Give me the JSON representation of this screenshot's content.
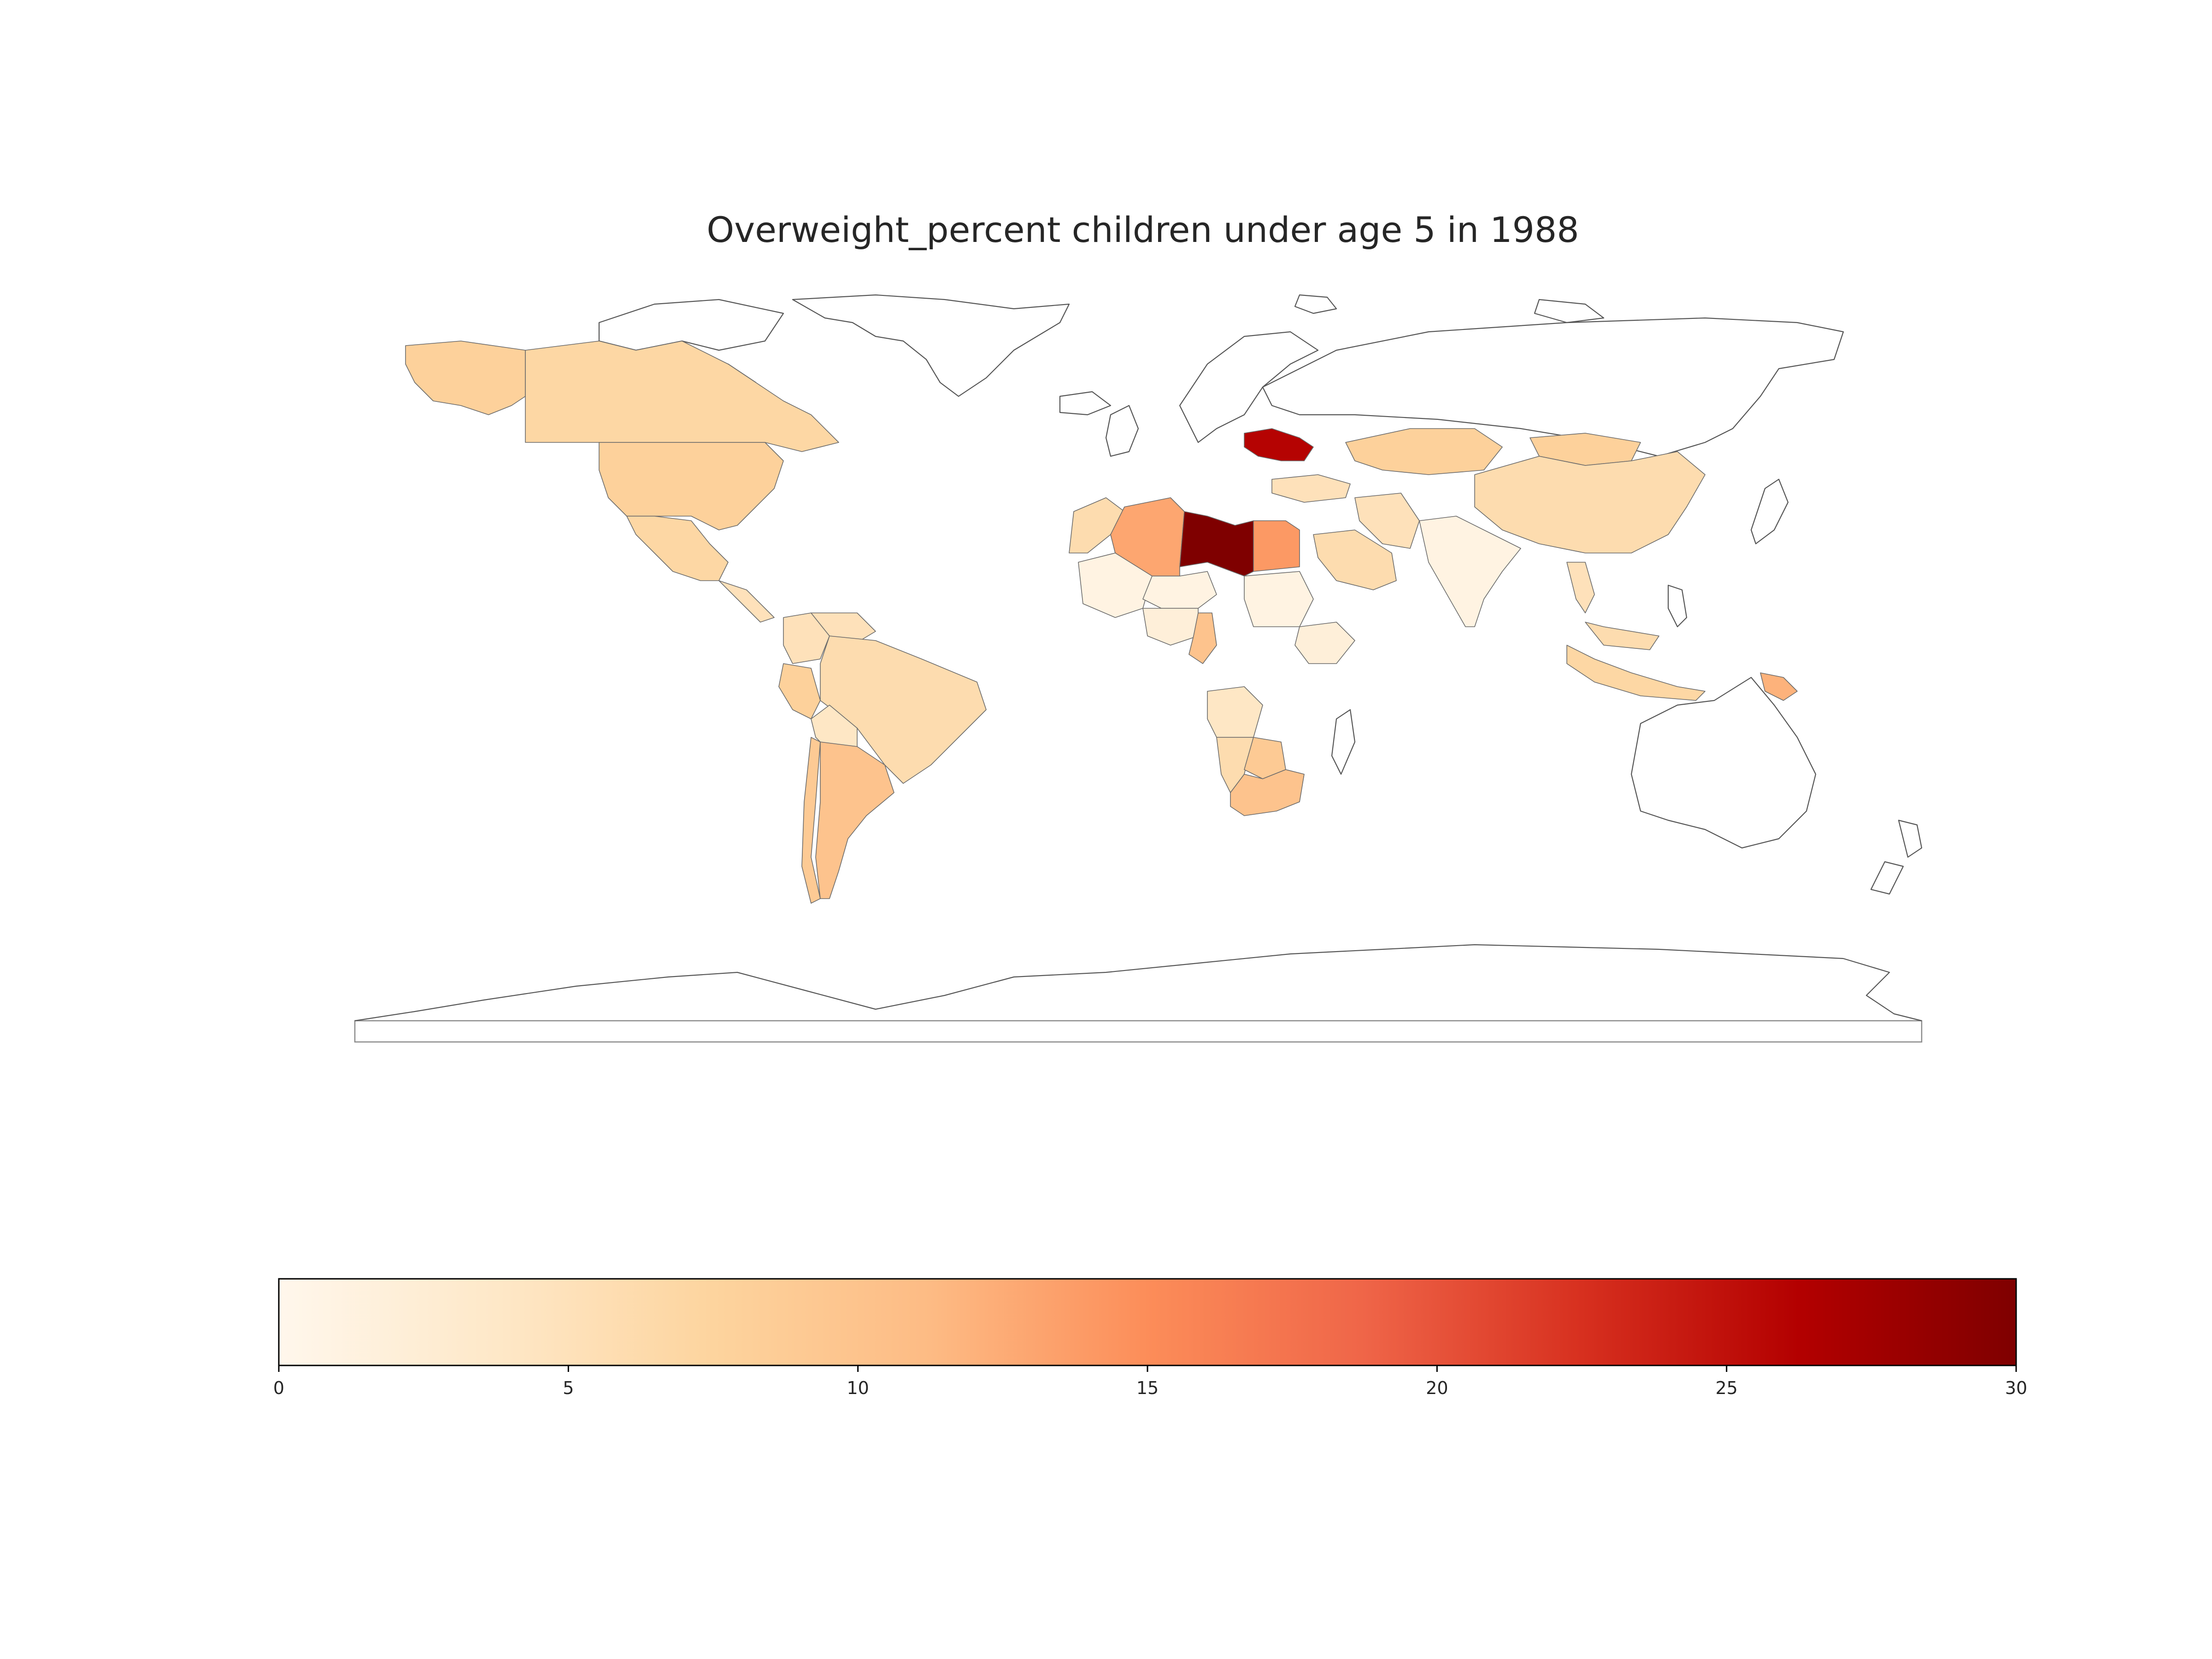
{
  "title": "Overweight_percent children under age 5 in 1988",
  "colorbar": {
    "cmap": "OrRd",
    "min": 0,
    "max": 30,
    "ticks": [
      "0",
      "5",
      "10",
      "15",
      "20",
      "25",
      "30"
    ],
    "stops": [
      "#fff7ec",
      "#fee8c8",
      "#fdd49e",
      "#fdbb84",
      "#fc8d59",
      "#ef6548",
      "#d7301f",
      "#b30000",
      "#7f0000"
    ]
  },
  "chart_data": {
    "type": "choropleth",
    "title": "Overweight_percent children under age 5 in 1988",
    "color_scale": {
      "min": 0,
      "max": 30,
      "palette": "OrRd"
    },
    "regions": [
      {
        "name": "Libya",
        "value": 30
      },
      {
        "name": "Ukraine",
        "value": 26
      },
      {
        "name": "Egypt",
        "value": 14
      },
      {
        "name": "Algeria",
        "value": 13
      },
      {
        "name": "Papua New Guinea",
        "value": 12
      },
      {
        "name": "Argentina",
        "value": 10
      },
      {
        "name": "South Africa",
        "value": 10
      },
      {
        "name": "Chile",
        "value": 9
      },
      {
        "name": "United States",
        "value": 8
      },
      {
        "name": "Canada",
        "value": 7
      },
      {
        "name": "Kazakhstan",
        "value": 8
      },
      {
        "name": "China",
        "value": 6
      },
      {
        "name": "Mongolia",
        "value": 8
      },
      {
        "name": "Brazil",
        "value": 6
      },
      {
        "name": "Peru",
        "value": 8
      },
      {
        "name": "Mexico",
        "value": 7
      },
      {
        "name": "Saudi Arabia",
        "value": 6
      },
      {
        "name": "Iran",
        "value": 5
      },
      {
        "name": "Indonesia",
        "value": 7
      },
      {
        "name": "Angola",
        "value": 4
      },
      {
        "name": "Namibia",
        "value": 6
      },
      {
        "name": "Botswana",
        "value": 9
      },
      {
        "name": "India",
        "value": 1
      },
      {
        "name": "Mali",
        "value": 1
      },
      {
        "name": "Sudan",
        "value": 1
      },
      {
        "name": "Niger",
        "value": 1
      },
      {
        "name": "Nigeria",
        "value": 2
      },
      {
        "name": "Ethiopia",
        "value": 2
      },
      {
        "name": "Morocco",
        "value": 6
      },
      {
        "name": "Turkey",
        "value": 5
      },
      {
        "name": "Thailand",
        "value": 5
      },
      {
        "name": "Malaysia",
        "value": 6
      },
      {
        "name": "Colombia",
        "value": 5
      },
      {
        "name": "Venezuela",
        "value": 5
      },
      {
        "name": "Bolivia",
        "value": 4
      },
      {
        "name": "Cameroon",
        "value": 10
      }
    ]
  }
}
